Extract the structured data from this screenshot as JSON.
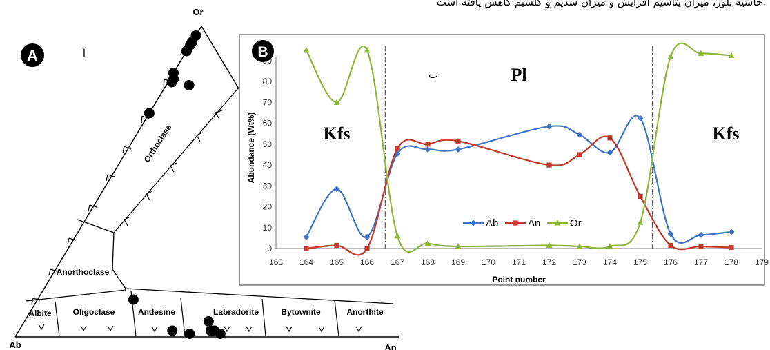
{
  "header_text": "حاشیه بلور، میزان پتاسیم افزایش و میزان سدیم و کلسیم کاهش یافته است.",
  "panel_a": {
    "badge": "A",
    "farsi_label": "آ",
    "vertices": {
      "top": "Or",
      "left": "Ab",
      "right": "An"
    },
    "fields": [
      "Orthoclase",
      "Anorthoclase",
      "Albite",
      "Oligoclase",
      "Andesine",
      "Labradorite",
      "Bytownite",
      "Anorthite"
    ]
  },
  "panel_b": {
    "badge": "B",
    "farsi_label": "ب",
    "phase_labels": {
      "left": "Kfs",
      "center": "Pl",
      "right": "Kfs"
    }
  },
  "chart_data": [
    {
      "type": "ternary",
      "vertices": [
        "Or",
        "Ab",
        "An"
      ],
      "fields": [
        "Orthoclase",
        "Anorthoclase",
        "Albite",
        "Oligoclase",
        "Andesine",
        "Labradorite",
        "Bytownite",
        "Anorthite"
      ],
      "points_ab_an_or": [
        [
          5,
          0,
          95
        ],
        [
          3,
          0,
          97
        ],
        [
          6,
          0,
          94
        ],
        [
          8,
          0,
          92
        ],
        [
          15,
          0,
          85
        ],
        [
          16,
          1,
          83
        ],
        [
          17,
          1,
          82
        ],
        [
          28,
          0,
          72
        ],
        [
          13,
          6,
          81
        ],
        [
          58,
          40,
          2
        ],
        [
          48,
          50,
          2
        ],
        [
          47,
          51,
          2
        ],
        [
          46,
          53,
          1
        ],
        [
          47,
          48,
          5
        ],
        [
          54,
          45,
          1
        ],
        [
          63,
          25,
          12
        ]
      ]
    },
    {
      "type": "line",
      "xlabel": "Point number",
      "ylabel": "Abundance (Wt%)",
      "xlim": [
        163,
        179
      ],
      "ylim": [
        0,
        90
      ],
      "x_ticks": [
        163,
        164,
        165,
        166,
        167,
        168,
        169,
        170,
        171,
        172,
        173,
        174,
        175,
        176,
        177,
        178,
        179
      ],
      "x_tick_labels": [
        "163",
        "164",
        "165",
        "166",
        "167",
        "168",
        "169",
        "170",
        "171",
        "172",
        "173",
        "174",
        "175",
        "176",
        "177",
        "178",
        "179"
      ],
      "y_ticks": [
        0,
        10,
        20,
        30,
        40,
        50,
        60,
        70,
        80,
        90
      ],
      "boundaries_x": [
        166.6,
        175.4
      ],
      "legend_position": "bottom-center",
      "series": [
        {
          "name": "Ab",
          "color": "#3f75c4",
          "marker": "diamond",
          "x": [
            164,
            165,
            166,
            167,
            168,
            169,
            172,
            173,
            174,
            175,
            176,
            177,
            178
          ],
          "values": [
            5.5,
            28.5,
            5.5,
            45.5,
            47.5,
            47.5,
            58.5,
            54.5,
            46,
            62.5,
            7,
            6.5,
            8
          ]
        },
        {
          "name": "An",
          "color": "#c23a2c",
          "marker": "square",
          "x": [
            164,
            165,
            166,
            167,
            168,
            169,
            172,
            173,
            174,
            175,
            176,
            177,
            178
          ],
          "values": [
            0,
            1.5,
            0,
            48,
            50,
            51.5,
            40,
            45,
            53,
            25,
            1.5,
            1,
            0.5
          ]
        },
        {
          "name": "Or",
          "color": "#8db63d",
          "marker": "triangle",
          "x": [
            164,
            165,
            166,
            167,
            168,
            169,
            172,
            173,
            174,
            175,
            176,
            177,
            178
          ],
          "values": [
            95,
            70,
            95,
            6,
            2.5,
            1,
            1.5,
            1,
            1,
            12.5,
            92,
            93.5,
            92.5
          ]
        }
      ]
    }
  ]
}
